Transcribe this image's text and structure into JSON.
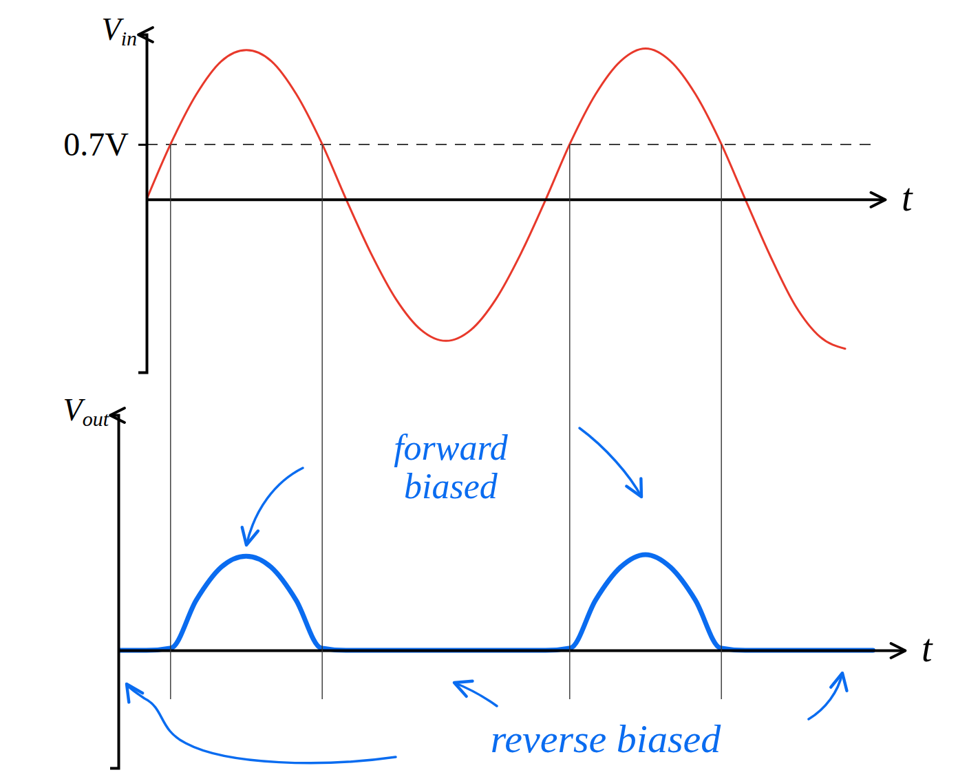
{
  "chart_data": [
    {
      "type": "line",
      "y_label": "Vin",
      "x_label": "t",
      "x": [
        0,
        0.0625,
        0.125,
        0.1875,
        0.25,
        0.3125,
        0.375,
        0.4375,
        0.5,
        0.5625,
        0.625,
        0.6875,
        0.75,
        0.8125,
        0.875,
        0.9375,
        1,
        1.0625,
        1.125,
        1.1875,
        1.25,
        1.3125,
        1.375,
        1.4375,
        1.5,
        1.5625,
        1.625,
        1.6875,
        1.75
      ],
      "series": [
        {
          "color": "#e8392b",
          "line_style": "solid",
          "values": [
            0,
            0.73,
            1.34,
            1.76,
            1.9,
            1.76,
            1.34,
            0.73,
            0,
            -0.69,
            -1.27,
            -1.66,
            -1.8,
            -1.66,
            -1.27,
            -0.69,
            0,
            0.73,
            1.34,
            1.76,
            1.92,
            1.76,
            1.34,
            0.73,
            0,
            -0.72,
            -1.35,
            -1.75,
            -1.9
          ]
        }
      ],
      "xlim": [
        0,
        1.85
      ],
      "ylim": [
        -2.2,
        2.1
      ],
      "yticks": [
        {
          "value": 0.7,
          "label": "0.7V"
        }
      ],
      "grid": true,
      "tick_labels": "y",
      "guides": [
        0.06,
        0.44,
        1.06,
        1.44
      ]
    },
    {
      "type": "line",
      "y_label": "Vout",
      "x_label": "t",
      "x": [
        -0.07,
        0,
        0.0625,
        0.125,
        0.1875,
        0.25,
        0.3125,
        0.375,
        0.4375,
        0.5,
        0.5625,
        0.625,
        0.6875,
        0.75,
        0.8125,
        0.875,
        0.9375,
        1,
        1.0625,
        1.125,
        1.1875,
        1.25,
        1.3125,
        1.375,
        1.4375,
        1.5,
        1.5625,
        1.625,
        1.6875,
        1.75,
        1.82
      ],
      "series": [
        {
          "color": "#0a6cf0",
          "line_style": "solid",
          "values": [
            0,
            0,
            0.03,
            0.64,
            1.06,
            1.2,
            1.06,
            0.64,
            0.03,
            0,
            0,
            0,
            0,
            0,
            0,
            0,
            0,
            0,
            0.03,
            0.64,
            1.06,
            1.22,
            1.06,
            0.64,
            0.03,
            0,
            0,
            0,
            0,
            0,
            0
          ]
        }
      ],
      "xlim": [
        -0.07,
        1.9
      ],
      "ylim": [
        -1.5,
        3.0
      ],
      "yticks": [],
      "grid": false,
      "tick_labels": false,
      "annotations": [
        "forward biased",
        "reverse biased"
      ]
    }
  ]
}
